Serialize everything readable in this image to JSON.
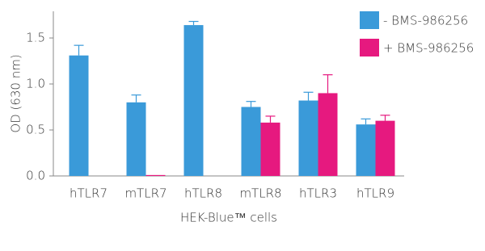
{
  "chart_data": {
    "type": "bar",
    "y_label": "OD (630 nm)",
    "x_label": "HEK-Blue™ cells",
    "categories": [
      "hTLR7",
      "mTLR7",
      "hTLR8",
      "mTLR8",
      "hTLR3",
      "hTLR9"
    ],
    "series": [
      {
        "name": "- BMS-986256",
        "color": "#3a9ad9",
        "values": [
          1.31,
          0.8,
          1.64,
          0.75,
          0.82,
          0.56
        ],
        "errors": [
          0.11,
          0.08,
          0.04,
          0.06,
          0.09,
          0.06
        ]
      },
      {
        "name": "+ BMS-986256",
        "color": "#e6197f",
        "values": [
          null,
          0.01,
          null,
          0.58,
          0.9,
          0.6
        ],
        "errors": [
          null,
          null,
          null,
          0.07,
          0.2,
          0.06
        ]
      }
    ],
    "ylim": [
      0,
      1.79
    ],
    "yticks": [
      {
        "value": 0,
        "label": "0.0"
      },
      0.5,
      {
        "value": 1,
        "label": "1.0"
      },
      1.5
    ],
    "legend": "top-right"
  }
}
